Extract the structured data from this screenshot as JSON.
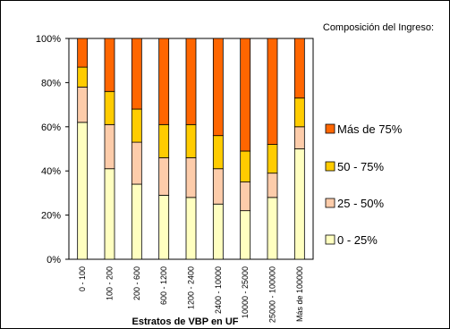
{
  "chart_data": {
    "type": "bar",
    "stacked": true,
    "percent_stacked": true,
    "title": "Composición del Ingreso:",
    "xlabel": "Estratos de VBP en UF",
    "ylabel": "",
    "ylim": [
      0,
      100
    ],
    "y_ticks": [
      "0%",
      "20%",
      "40%",
      "60%",
      "80%",
      "100%"
    ],
    "grid": false,
    "legend_position": "right",
    "categories": [
      "0 - 100",
      "100 - 200",
      "200 - 600",
      "600 - 1200",
      "1200 - 2400",
      "2400 - 10000",
      "10000 - 25000",
      "25000 - 100000",
      "Más de 100000"
    ],
    "series": [
      {
        "name": "0 - 25%",
        "color": "#ffffc0",
        "values": [
          62,
          41,
          34,
          29,
          28,
          25,
          22,
          28,
          50
        ]
      },
      {
        "name": "25 - 50%",
        "color": "#fdccaa",
        "values": [
          16,
          20,
          19,
          17,
          18,
          16,
          13,
          11,
          10
        ]
      },
      {
        "name": "50 - 75%",
        "color": "#ffcc00",
        "values": [
          9,
          15,
          15,
          15,
          15,
          15,
          14,
          13,
          13
        ]
      },
      {
        "name": "Más de 75%",
        "color": "#ff6600",
        "values": [
          13,
          24,
          32,
          39,
          39,
          44,
          51,
          48,
          27
        ]
      }
    ]
  }
}
